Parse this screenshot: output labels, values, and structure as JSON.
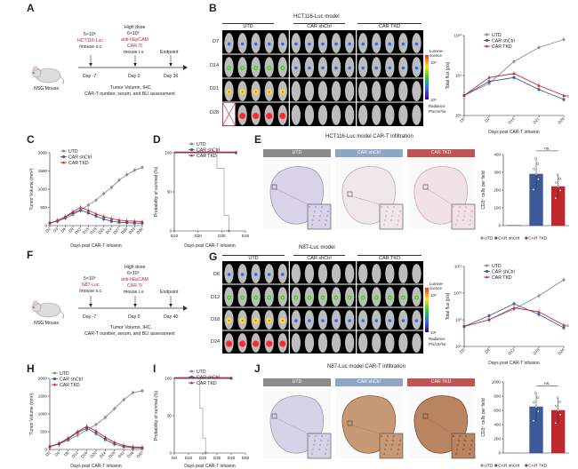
{
  "panels": {
    "A": {
      "letter": "A",
      "cells": "5×10⁶",
      "cell_line": "HCT116-Luc",
      "route": "/mouse s.c.",
      "dose_title": "High dose",
      "dose": "6×10⁶",
      "car": "anti-hEpCAM",
      "car2": "CAR-T/",
      "car_route": "mouse i.v.",
      "endpoint": "Endpoint",
      "day1": "Day -7",
      "day2": "Day 0",
      "day3": "Day 36",
      "mouse_label": "NSG Mouse",
      "assess1": "Tumor Volumn, IHC,",
      "assess2": "CAR-T number, serum, and BLI assessment"
    },
    "B": {
      "letter": "B",
      "title": "HCT116-Luc model",
      "groups": [
        "UTD",
        "CAR shCtrl",
        "CAR TKD"
      ],
      "rows": [
        "D7",
        "D14",
        "D21",
        "D28"
      ],
      "legend_top": "Lumine-scence",
      "legend_scale_top": "10⁸",
      "legend_scale_bot": "10⁶",
      "legend_bottom": "Radiance",
      "legend_units": "P/s/cm²/sr"
    },
    "C": {
      "letter": "C"
    },
    "D": {
      "letter": "D"
    },
    "E": {
      "letter": "E",
      "title": "HCT116-Luc model CAR-T infiltration",
      "groups": [
        "UTD",
        "CAR shCtrl",
        "CAR TKD"
      ]
    },
    "F": {
      "letter": "F",
      "cells": "5×10⁶",
      "cell_line": "N87-Luc",
      "route": "/mouse s.c.",
      "dose_title": "High dose",
      "dose": "6×10⁶",
      "car": "anti-hEpCAM",
      "car2": "CAR-T/",
      "car_route": "mouse i.v.",
      "endpoint": "Endpoint",
      "day1": "Day -7",
      "day2": "Day 0",
      "day3": "Day 40",
      "mouse_label": "NSG Mouse",
      "assess1": "Tumor Volumn, IHC,",
      "assess2": "CAR-T number, serum, and BLI assessment"
    },
    "G": {
      "letter": "G",
      "title": "N87-Luc model",
      "groups": [
        "UTD",
        "CAR shCtrl",
        "CAR TKD"
      ],
      "rows": [
        "D6",
        "D12",
        "D18",
        "D24"
      ],
      "legend_top": "Lumine-scence",
      "legend_scale_top": "10⁸",
      "legend_scale_bot": "10⁶",
      "legend_bottom": "Radiance",
      "legend_units": "P/s/cm²/sr"
    },
    "H": {
      "letter": "H"
    },
    "I": {
      "letter": "I"
    },
    "J": {
      "letter": "J",
      "title": "N87-Luc model CAR-T infiltration",
      "groups": [
        "UTD",
        "CAR shCtrl",
        "CAR TKD"
      ]
    }
  },
  "colors": {
    "utd": "#8c8c8c",
    "shctrl": "#3d5a98",
    "tkd": "#c0282d",
    "utd_head": "#8a8a8a",
    "shctrl_head": "#8ea7c9",
    "tkd_head": "#c05454"
  },
  "chart_data": [
    {
      "id": "B_flux",
      "type": "line",
      "xlabel": "Days post CAR-T infusion",
      "ylabel": "Total flux [p/s]",
      "x": [
        "D0",
        "D7",
        "D14",
        "D21",
        "D28"
      ],
      "y_ticks": [
        "10⁶",
        "10⁸",
        "10¹⁰"
      ],
      "y_log_range": [
        6,
        10
      ],
      "series": [
        {
          "name": "UTD",
          "values": [
            7.0,
            7.6,
            8.7,
            9.4,
            9.8
          ]
        },
        {
          "name": "CAR shCtrl",
          "values": [
            7.0,
            7.7,
            7.9,
            7.3,
            6.8
          ]
        },
        {
          "name": "CAR TKD",
          "values": [
            7.0,
            7.9,
            8.1,
            7.5,
            7.0
          ]
        }
      ],
      "annotation": "ns"
    },
    {
      "id": "C_volume",
      "type": "line",
      "xlabel": "Days post CAR-T infusion",
      "ylabel": "Tumor Volume (mm³)",
      "x": [
        "D0",
        "D3",
        "D6",
        "D9",
        "D12",
        "D15",
        "D18",
        "D21",
        "D24",
        "D27",
        "D30",
        "D33",
        "D36"
      ],
      "ylim": [
        0,
        2000
      ],
      "y_ticks": [
        "0",
        "500",
        "1000",
        "1500",
        "2000"
      ],
      "series": [
        {
          "name": "UTD",
          "values": [
            70,
            120,
            200,
            300,
            420,
            560,
            700,
            880,
            1050,
            1250,
            1400,
            1520,
            1600
          ]
        },
        {
          "name": "CAR shCtrl",
          "values": [
            70,
            130,
            230,
            350,
            420,
            350,
            260,
            180,
            120,
            90,
            80,
            70,
            65
          ]
        },
        {
          "name": "CAR TKD",
          "values": [
            70,
            140,
            240,
            380,
            500,
            420,
            320,
            250,
            190,
            150,
            130,
            120,
            110
          ]
        }
      ]
    },
    {
      "id": "D_survival",
      "type": "line",
      "xlabel": "Days post CAR-T infusion",
      "ylabel": "Probability of survival (%)",
      "x_ticks": [
        "D10",
        "D20",
        "D30",
        "D40"
      ],
      "ylim": [
        0,
        100
      ],
      "y_ticks": [
        "0",
        "50",
        "100"
      ],
      "series": [
        {
          "name": "UTD",
          "values": [
            [
              10,
              100
            ],
            [
              28,
              100
            ],
            [
              28,
              80
            ],
            [
              31,
              80
            ],
            [
              31,
              20
            ],
            [
              33,
              20
            ],
            [
              33,
              0
            ]
          ]
        },
        {
          "name": "CAR shCtrl",
          "values": [
            [
              10,
              100
            ],
            [
              36,
              100
            ]
          ]
        },
        {
          "name": "CAR TKD",
          "values": [
            [
              10,
              100
            ],
            [
              36,
              100
            ]
          ]
        }
      ]
    },
    {
      "id": "E_bar",
      "type": "bar",
      "ylabel": "CD3⁺ cells per field",
      "categories": [
        "UTD",
        "CAR shCtrl",
        "CAR TKD"
      ],
      "values": [
        3,
        290,
        220
      ],
      "ylim": [
        0,
        400
      ],
      "y_ticks": [
        "0",
        "100",
        "200",
        "300",
        "400"
      ],
      "annotation": "ns."
    },
    {
      "id": "G_flux",
      "type": "line",
      "xlabel": "Days post CAR-T infusion",
      "ylabel": "Total flux [p/s]",
      "x": [
        "D0",
        "D6",
        "D12",
        "D18",
        "D24"
      ],
      "y_ticks": [
        "10⁶",
        "10⁸",
        "10¹⁰",
        "10¹²"
      ],
      "y_log_range": [
        6,
        12
      ],
      "series": [
        {
          "name": "UTD",
          "values": [
            7.5,
            8.0,
            8.8,
            9.8,
            11.0
          ]
        },
        {
          "name": "CAR shCtrl",
          "values": [
            7.5,
            8.3,
            9.2,
            8.4,
            7.4
          ]
        },
        {
          "name": "CAR TKD",
          "values": [
            7.5,
            8.0,
            8.9,
            8.6,
            7.6
          ]
        }
      ],
      "annotation": "ns"
    },
    {
      "id": "H_volume",
      "type": "line",
      "xlabel": "Days post CAR-T infusion",
      "ylabel": "Tumor Volume (mm³)",
      "x": [
        "D0",
        "D4",
        "D8",
        "D12",
        "D16",
        "D20",
        "D24",
        "D28",
        "D32",
        "D36",
        "D40"
      ],
      "ylim": [
        0,
        2000
      ],
      "y_ticks": [
        "0",
        "500",
        "1000",
        "1500",
        "2000"
      ],
      "series": [
        {
          "name": "UTD",
          "values": [
            80,
            150,
            260,
            400,
            550,
            700,
            900,
            1150,
            1400,
            1600,
            1650
          ]
        },
        {
          "name": "CAR shCtrl",
          "values": [
            80,
            160,
            300,
            480,
            600,
            450,
            280,
            150,
            80,
            50,
            40
          ]
        },
        {
          "name": "CAR TKD",
          "values": [
            80,
            170,
            320,
            500,
            650,
            520,
            340,
            200,
            110,
            70,
            60
          ]
        }
      ]
    },
    {
      "id": "I_survival",
      "type": "line",
      "xlabel": "Days post CAR-T infusion",
      "ylabel": "Probability of survival (%)",
      "x_ticks": [
        "D0",
        "D10",
        "D20",
        "D30",
        "D40",
        "D50"
      ],
      "ylim": [
        0,
        100
      ],
      "y_ticks": [
        "0",
        "50",
        "100"
      ],
      "series": [
        {
          "name": "UTD",
          "values": [
            [
              0,
              100
            ],
            [
              18,
              100
            ],
            [
              18,
              60
            ],
            [
              20,
              60
            ],
            [
              20,
              20
            ],
            [
              22,
              20
            ],
            [
              22,
              0
            ]
          ]
        },
        {
          "name": "CAR shCtrl",
          "values": [
            [
              0,
              100
            ],
            [
              40,
              100
            ]
          ]
        },
        {
          "name": "CAR TKD",
          "values": [
            [
              0,
              100
            ],
            [
              40,
              100
            ]
          ]
        }
      ]
    },
    {
      "id": "J_bar",
      "type": "bar",
      "ylabel": "CD3⁺ cells per field",
      "categories": [
        "UTD",
        "CAR shCtrl",
        "CAR TKD"
      ],
      "values": [
        3,
        650,
        600
      ],
      "ylim": [
        0,
        1000
      ],
      "y_ticks": [
        "0",
        "200",
        "400",
        "600",
        "800",
        "1000"
      ],
      "annotation": "ns."
    }
  ],
  "legend": {
    "utd": "UTD",
    "shctrl": "CAR shCtrl",
    "tkd": "CAR TKD"
  },
  "axis_common_x": "Days post CAR-T infusion"
}
